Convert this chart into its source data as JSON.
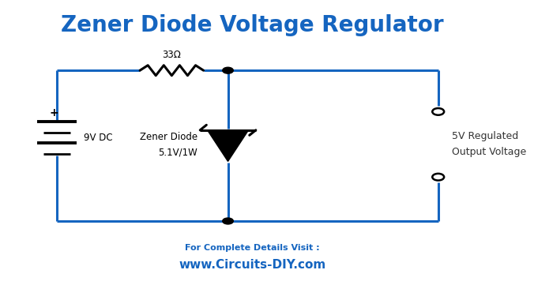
{
  "title": "Zener Diode Voltage Regulator",
  "title_color": "#1565C0",
  "title_fontsize": 20,
  "bg_color": "#ffffff",
  "wire_color": "#1565C0",
  "component_color": "#000000",
  "wire_lw": 2.2,
  "footer_line1": "For Complete Details Visit :",
  "footer_line2": "www.Circuits-DIY.com",
  "footer_color": "#1565C0",
  "resistor_label": "33Ω",
  "battery_label": "9V DC",
  "zener_label1": "Zener Diode",
  "zener_label2": "5.1V/1W",
  "output_label1": "5V Regulated",
  "output_label2": "Output Voltage",
  "output_label_color": "#333333"
}
